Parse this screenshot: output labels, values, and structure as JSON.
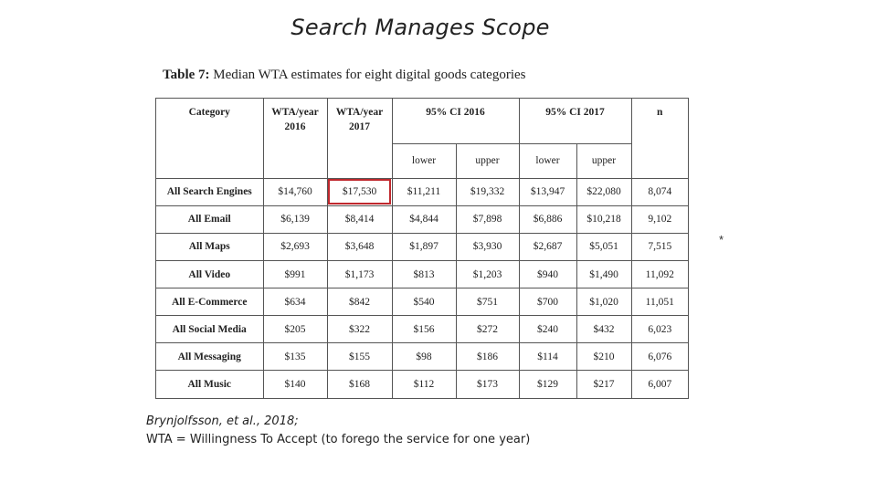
{
  "slide": {
    "title": "Search Manages Scope",
    "asterisk": "*"
  },
  "table": {
    "caption_label": "Table 7:",
    "caption_text": "Median WTA estimates for eight digital goods categories",
    "headers": {
      "category": "Category",
      "wta_2016": "WTA/year 2016",
      "wta_2017": "WTA/year 2017",
      "ci_2016": "95% CI 2016",
      "ci_2017": "95% CI 2017",
      "n": "n",
      "lower": "lower",
      "upper": "upper"
    },
    "rows": [
      [
        "All Search Engines",
        "$14,760",
        "$17,530",
        "$11,211",
        "$19,332",
        "$13,947",
        "$22,080",
        "8,074"
      ],
      [
        "All Email",
        "$6,139",
        "$8,414",
        "$4,844",
        "$7,898",
        "$6,886",
        "$10,218",
        "9,102"
      ],
      [
        "All Maps",
        "$2,693",
        "$3,648",
        "$1,897",
        "$3,930",
        "$2,687",
        "$5,051",
        "7,515"
      ],
      [
        "All Video",
        "$991",
        "$1,173",
        "$813",
        "$1,203",
        "$940",
        "$1,490",
        "11,092"
      ],
      [
        "All E-Commerce",
        "$634",
        "$842",
        "$540",
        "$751",
        "$700",
        "$1,020",
        "11,051"
      ],
      [
        "All Social Media",
        "$205",
        "$322",
        "$156",
        "$272",
        "$240",
        "$432",
        "6,023"
      ],
      [
        "All Messaging",
        "$135",
        "$155",
        "$98",
        "$186",
        "$114",
        "$210",
        "6,076"
      ],
      [
        "All Music",
        "$140",
        "$168",
        "$112",
        "$173",
        "$129",
        "$217",
        "6,007"
      ]
    ],
    "highlight_color": "#c0282d"
  },
  "citation": {
    "reference": "Brynjolfsson, et al., 2018;",
    "definition": "WTA = Willingness To Accept (to forego the service for one year)"
  }
}
